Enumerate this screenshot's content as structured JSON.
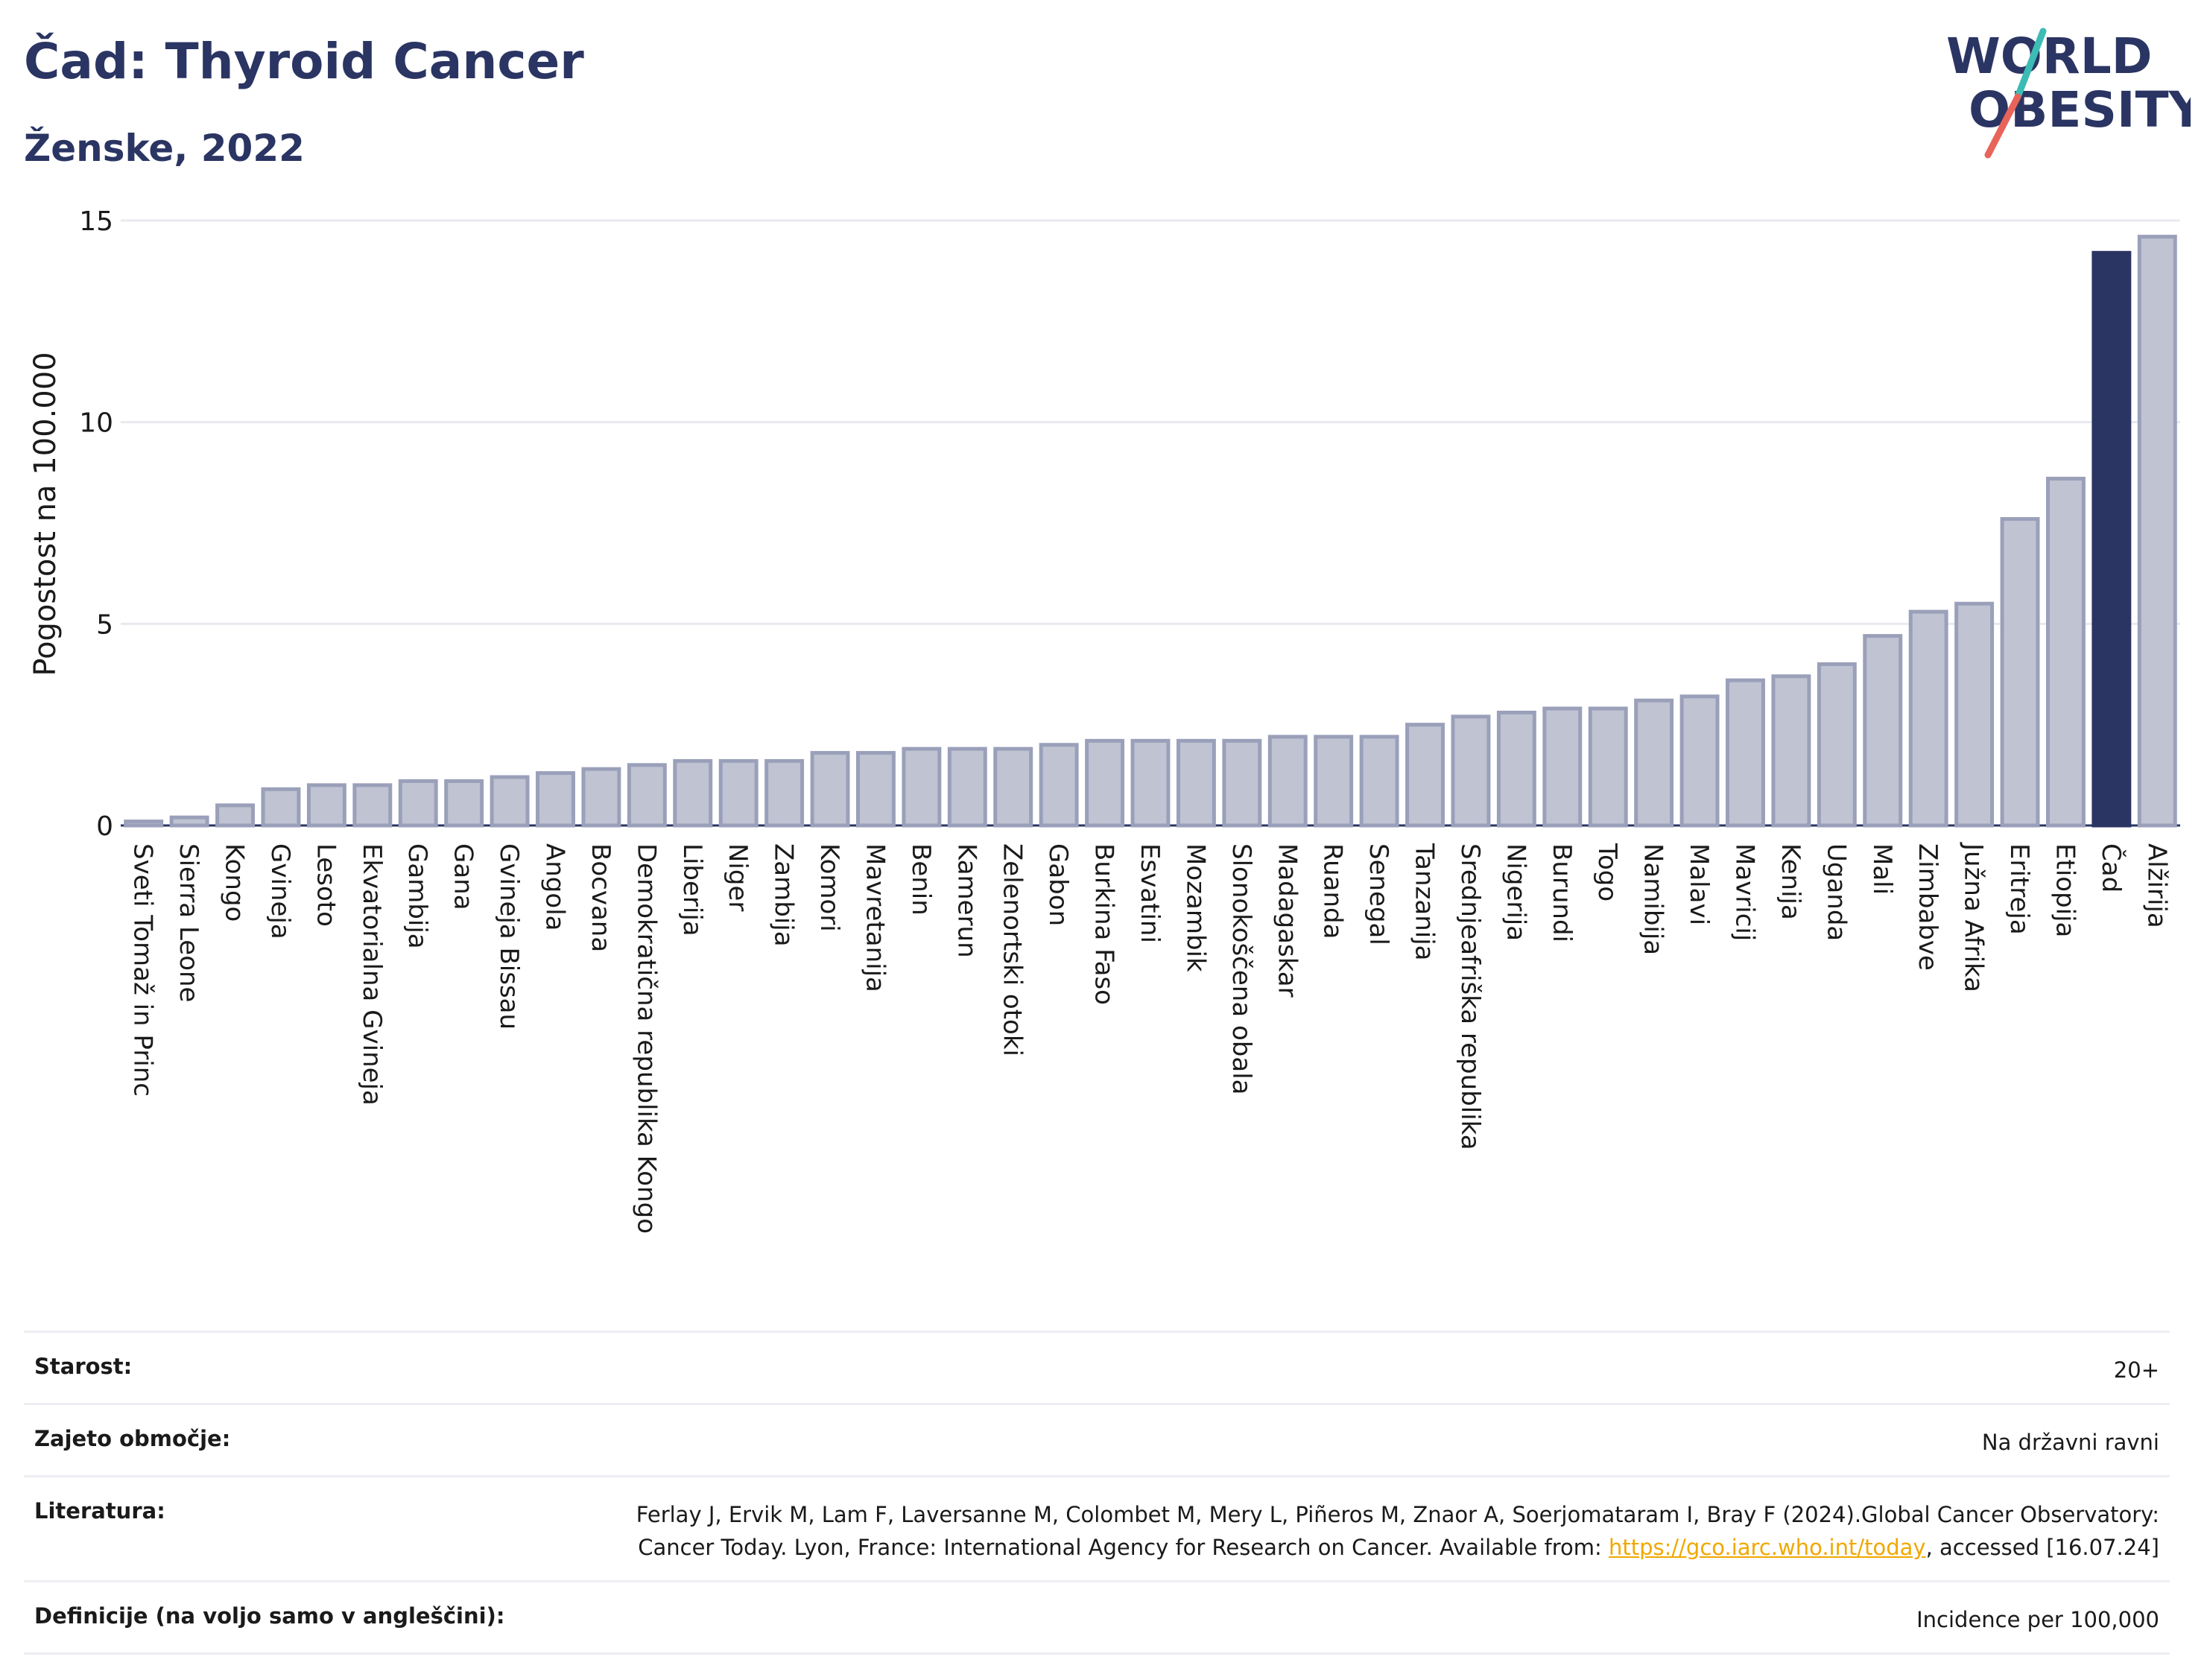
{
  "header": {
    "title": "Čad: Thyroid Cancer",
    "subtitle": "Ženske, 2022"
  },
  "logo": {
    "line1": "WORLD",
    "line2": "OBESITY",
    "colors": {
      "text": "#2b3563",
      "slash_teal": "#3cbcb4",
      "slash_red": "#e8645a"
    }
  },
  "chart_data": {
    "type": "bar",
    "ylabel": "Pogostost na 100.000",
    "xlabel": "",
    "ylim": [
      0,
      15
    ],
    "yticks": [
      0,
      5,
      10,
      15
    ],
    "grid": true,
    "highlight": "Čad",
    "colors": {
      "bar": "#bfc3d2",
      "bar_edge": "#9aa0b9",
      "highlight": "#2b3563",
      "grid": "#e8eaf0"
    },
    "categories": [
      "Sveti Tomaž in Princ",
      "Sierra Leone",
      "Kongo",
      "Gvineja",
      "Lesoto",
      "Ekvatorialna Gvineja",
      "Gambija",
      "Gana",
      "Gvineja Bissau",
      "Angola",
      "Bocvana",
      "Demokratična republika Kongo",
      "Liberija",
      "Niger",
      "Zambija",
      "Komori",
      "Mavretanija",
      "Benin",
      "Kamerun",
      "Zelenortski otoki",
      "Gabon",
      "Burkina Faso",
      "Esvatini",
      "Mozambik",
      "Slonokoščena obala",
      "Madagaskar",
      "Ruanda",
      "Senegal",
      "Tanzanija",
      "Srednjeafriška republika",
      "Nigerija",
      "Burundi",
      "Togo",
      "Namibija",
      "Malavi",
      "Mavricij",
      "Kenija",
      "Uganda",
      "Mali",
      "Zimbabve",
      "Južna Afrika",
      "Eritreja",
      "Etiopija",
      "Čad",
      "Alžirija"
    ],
    "values": [
      0.1,
      0.2,
      0.5,
      0.9,
      1.0,
      1.0,
      1.1,
      1.1,
      1.2,
      1.3,
      1.4,
      1.5,
      1.6,
      1.6,
      1.6,
      1.8,
      1.8,
      1.9,
      1.9,
      1.9,
      2.0,
      2.1,
      2.1,
      2.1,
      2.1,
      2.2,
      2.2,
      2.2,
      2.5,
      2.7,
      2.8,
      2.9,
      2.9,
      3.1,
      3.2,
      3.6,
      3.7,
      4.0,
      4.7,
      5.3,
      5.5,
      7.6,
      8.6,
      14.2,
      14.6
    ]
  },
  "info": {
    "age_label": "Starost:",
    "age_value": "20+",
    "coverage_label": "Zajeto območje:",
    "coverage_value": "Na državni ravni",
    "ref_label": "Literatura:",
    "ref_text_1": "Ferlay J, Ervik M, Lam F, Laversanne M, Colombet M, Mery L, Piñeros M, Znaor A, Soerjomataram I, Bray F (2024).Global Cancer Observatory: Cancer Today. Lyon, France: International Agency for Research on Cancer. Available from: ",
    "ref_link": "https://gco.iarc.who.int/today",
    "ref_text_2": ", accessed [16.07.24]",
    "def_label": "Definicije (na voljo samo v angleščini):",
    "def_value": "Incidence per 100,000"
  }
}
